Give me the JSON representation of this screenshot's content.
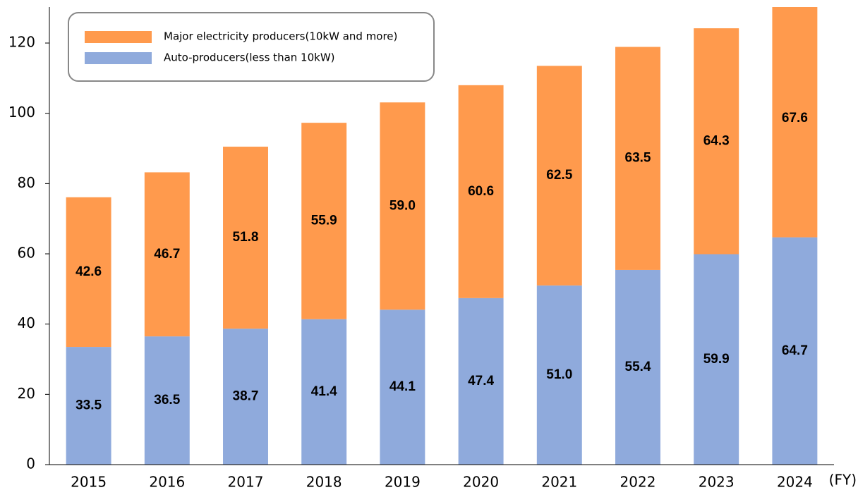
{
  "chart_data": {
    "type": "stacked_bar",
    "x_label": "(FY)",
    "categories": [
      "2015",
      "2016",
      "2017",
      "2018",
      "2019",
      "2020",
      "2021",
      "2022",
      "2023",
      "2024"
    ],
    "series": [
      {
        "name": "Auto-producers(less than 10kW)",
        "color": "#8faadc",
        "values": [
          33.5,
          36.5,
          38.7,
          41.4,
          44.1,
          47.4,
          51.0,
          55.4,
          59.9,
          64.7
        ],
        "value_labels": [
          "33.5",
          "36.5",
          "38.7",
          "41.4",
          "44.1",
          "47.4",
          "51.0",
          "55.4",
          "59.9",
          "64.7"
        ]
      },
      {
        "name": "Major electricity producers(10kW and more)",
        "color": "#ff9a4d",
        "values": [
          42.6,
          46.7,
          51.8,
          55.9,
          59.0,
          60.6,
          62.5,
          63.5,
          64.3,
          67.6
        ],
        "value_labels": [
          "42.6",
          "46.7",
          "51.8",
          "55.9",
          "59.0",
          "60.6",
          "62.5",
          "63.5",
          "64.3",
          "67.6"
        ]
      }
    ],
    "ylim": [
      0,
      130
    ],
    "yticks": [
      0,
      20,
      40,
      60,
      80,
      100,
      120
    ]
  }
}
